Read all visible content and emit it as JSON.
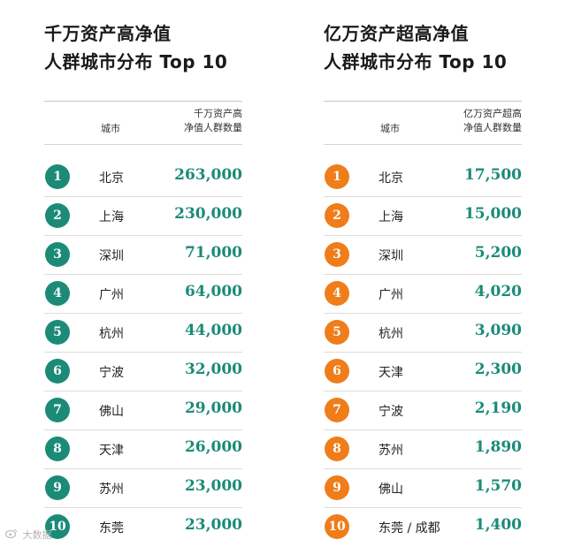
{
  "colors": {
    "left_accent": "#1b8b78",
    "right_accent": "#ef7d1a",
    "value_text": "#1b8b78"
  },
  "left": {
    "title_line1": "千万资产高净值",
    "title_line2": "人群城市分布 Top 10",
    "col_city": "城市",
    "col_value": "千万资产高\n净值人群数量",
    "rows": [
      {
        "rank": "1",
        "city": "北京",
        "value": "263,000"
      },
      {
        "rank": "2",
        "city": "上海",
        "value": "230,000"
      },
      {
        "rank": "3",
        "city": "深圳",
        "value": "71,000"
      },
      {
        "rank": "4",
        "city": "广州",
        "value": "64,000"
      },
      {
        "rank": "5",
        "city": "杭州",
        "value": "44,000"
      },
      {
        "rank": "6",
        "city": "宁波",
        "value": "32,000"
      },
      {
        "rank": "7",
        "city": "佛山",
        "value": "29,000"
      },
      {
        "rank": "8",
        "city": "天津",
        "value": "26,000"
      },
      {
        "rank": "9",
        "city": "苏州",
        "value": "23,000"
      },
      {
        "rank": "10",
        "city": "东莞",
        "value": "23,000"
      }
    ]
  },
  "right": {
    "title_line1": "亿万资产超高净值",
    "title_line2": "人群城市分布 Top 10",
    "col_city": "城市",
    "col_value": "亿万资产超高\n净值人群数量",
    "rows": [
      {
        "rank": "1",
        "city": "北京",
        "value": "17,500"
      },
      {
        "rank": "2",
        "city": "上海",
        "value": "15,000"
      },
      {
        "rank": "3",
        "city": "深圳",
        "value": "5,200"
      },
      {
        "rank": "4",
        "city": "广州",
        "value": "4,020"
      },
      {
        "rank": "5",
        "city": "杭州",
        "value": "3,090"
      },
      {
        "rank": "6",
        "city": "天津",
        "value": "2,300"
      },
      {
        "rank": "7",
        "city": "宁波",
        "value": "2,190"
      },
      {
        "rank": "8",
        "city": "苏州",
        "value": "1,890"
      },
      {
        "rank": "9",
        "city": "佛山",
        "value": "1,570"
      },
      {
        "rank": "10",
        "city": "东莞 / 成都",
        "value": "1,400"
      }
    ]
  },
  "watermark": {
    "text": "大数据",
    "icon": "weibo-icon"
  }
}
